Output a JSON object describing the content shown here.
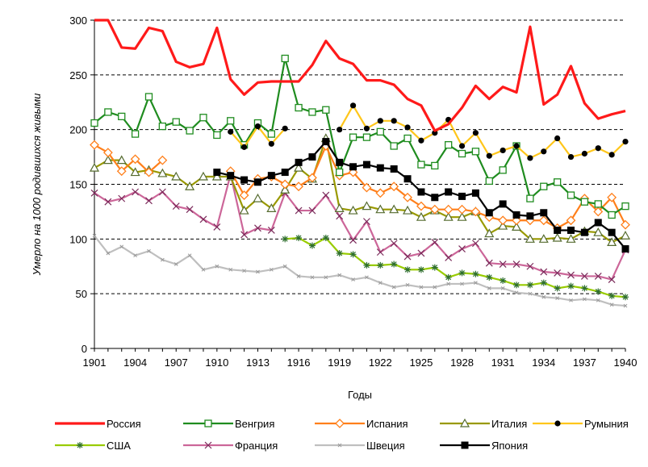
{
  "chart_data": {
    "type": "line",
    "xlabel": "Годы",
    "ylabel": "Умерло на 1000 родившихся живыми",
    "xlim": [
      1901,
      1940
    ],
    "ylim": [
      0,
      300
    ],
    "x_ticks": [
      "1901",
      "1904",
      "1907",
      "1910",
      "1913",
      "1916",
      "1919",
      "1922",
      "1925",
      "1928",
      "1931",
      "1934",
      "1937",
      "1940"
    ],
    "y_ticks": [
      "0",
      "50",
      "100",
      "150",
      "200",
      "250",
      "300"
    ],
    "grid": "horizontal dashed",
    "legend_position": "bottom",
    "series": [
      {
        "name": "Россия",
        "color": "#ff1a1a",
        "marker": "none",
        "x": [
          1901,
          1902,
          1903,
          1904,
          1905,
          1906,
          1907,
          1908,
          1909,
          1910,
          1911,
          1912,
          1913,
          1914,
          1915,
          1916,
          1917,
          1918,
          1919,
          1920,
          1921,
          1922,
          1923,
          1924,
          1925,
          1926,
          1927,
          1928,
          1929,
          1930,
          1931,
          1932,
          1933,
          1934,
          1935,
          1936,
          1937,
          1938,
          1939,
          1940
        ],
        "y": [
          300,
          300,
          275,
          274,
          293,
          290,
          262,
          257,
          260,
          293,
          246,
          232,
          243,
          244,
          244,
          244,
          259,
          281,
          265,
          260,
          245,
          245,
          241,
          228,
          222,
          199,
          205,
          220,
          240,
          228,
          239,
          234,
          294,
          223,
          232,
          258,
          224,
          210,
          214,
          217
        ]
      },
      {
        "name": "Венгрия",
        "color": "#1f8c1f",
        "marker": "square",
        "x": [
          1901,
          1902,
          1903,
          1904,
          1905,
          1906,
          1907,
          1908,
          1909,
          1910,
          1911,
          1912,
          1913,
          1914,
          1915,
          1916,
          1917,
          1918,
          1919,
          1920,
          1921,
          1922,
          1923,
          1924,
          1925,
          1926,
          1927,
          1928,
          1929,
          1930,
          1931,
          1932,
          1933,
          1934,
          1935,
          1936,
          1937,
          1938,
          1939,
          1940
        ],
        "y": [
          206,
          216,
          212,
          196,
          230,
          203,
          207,
          199,
          211,
          195,
          208,
          186,
          206,
          196,
          265,
          220,
          216,
          218,
          161,
          193,
          193,
          198,
          185,
          192,
          168,
          167,
          186,
          178,
          180,
          153,
          163,
          185,
          137,
          148,
          152,
          140,
          134,
          132,
          122,
          130
        ]
      },
      {
        "name": "Испания",
        "color": "#ff7f1a",
        "marker": "diamond",
        "x": [
          1901,
          1902,
          1903,
          1904,
          1905,
          1906,
          null,
          1911,
          1912,
          1913,
          1914,
          1915,
          1916,
          1917,
          1918,
          1919,
          1920,
          1921,
          1922,
          1923,
          1924,
          1925,
          1926,
          1927,
          1928,
          1929,
          1930,
          1931,
          1932,
          1933,
          1934,
          1935,
          1936,
          1937,
          1938,
          1939,
          1940
        ],
        "y": [
          186,
          179,
          162,
          173,
          161,
          172,
          null,
          162,
          140,
          155,
          157,
          150,
          148,
          156,
          185,
          158,
          161,
          147,
          142,
          148,
          138,
          130,
          127,
          127,
          127,
          125,
          120,
          117,
          117,
          117,
          117,
          110,
          117,
          137,
          125,
          138,
          113
        ]
      },
      {
        "name": "Италия",
        "color": "#999900",
        "marker": "triangle",
        "x": [
          1901,
          1902,
          1903,
          1904,
          1905,
          1906,
          1907,
          1908,
          1909,
          1910,
          1911,
          1912,
          1913,
          1914,
          1915,
          1916,
          1917,
          1918,
          1919,
          1920,
          1921,
          1922,
          1923,
          1924,
          1925,
          1926,
          1927,
          1928,
          1929,
          1930,
          1931,
          1932,
          1933,
          1934,
          1935,
          1936,
          1937,
          1938,
          1939,
          1940
        ],
        "y": [
          165,
          172,
          172,
          161,
          163,
          160,
          157,
          148,
          157,
          157,
          157,
          126,
          137,
          128,
          145,
          165,
          155,
          192,
          128,
          126,
          130,
          127,
          127,
          126,
          120,
          126,
          120,
          120,
          125,
          105,
          112,
          111,
          100,
          100,
          101,
          100,
          107,
          106,
          97,
          103
        ]
      },
      {
        "name": "Румыния",
        "color": "#ffc61a",
        "marker": "circle",
        "x": [
          1911,
          1912,
          1913,
          1914,
          1915,
          null,
          1919,
          1920,
          1921,
          1922,
          1923,
          1924,
          1925,
          1926,
          1927,
          1928,
          1929,
          1930,
          1931,
          1932,
          1933,
          1934,
          1935,
          1936,
          1937,
          1938,
          1939,
          1940
        ],
        "y": [
          198,
          184,
          203,
          187,
          201,
          null,
          200,
          222,
          201,
          208,
          208,
          202,
          190,
          197,
          209,
          185,
          197,
          176,
          181,
          185,
          174,
          180,
          192,
          175,
          178,
          183,
          177,
          189
        ]
      },
      {
        "name": "США",
        "color": "#99cc00",
        "marker": "asterisk",
        "x": [
          1915,
          1916,
          1917,
          1918,
          1919,
          1920,
          1921,
          1922,
          1923,
          1924,
          1925,
          1926,
          1927,
          1928,
          1929,
          1930,
          1931,
          1932,
          1933,
          1934,
          1935,
          1936,
          1937,
          1938,
          1939,
          1940
        ],
        "y": [
          100,
          101,
          94,
          101,
          87,
          86,
          76,
          76,
          77,
          72,
          72,
          74,
          65,
          69,
          68,
          65,
          62,
          58,
          58,
          60,
          55,
          57,
          55,
          52,
          48,
          47
        ]
      },
      {
        "name": "Франция",
        "color": "#cc6699",
        "marker": "x",
        "x": [
          1901,
          1902,
          1903,
          1904,
          1905,
          1906,
          1907,
          1908,
          1909,
          1910,
          1911,
          1912,
          1913,
          1914,
          1915,
          1916,
          1917,
          1918,
          1919,
          1920,
          1921,
          1922,
          1923,
          1924,
          1925,
          1926,
          1927,
          1928,
          1929,
          1930,
          1931,
          1932,
          1933,
          1934,
          1935,
          1936,
          1937,
          1938,
          1939,
          1940
        ],
        "y": [
          142,
          134,
          137,
          143,
          135,
          143,
          130,
          127,
          118,
          111,
          159,
          104,
          110,
          108,
          142,
          126,
          126,
          140,
          121,
          99,
          116,
          88,
          96,
          84,
          87,
          97,
          83,
          91,
          96,
          78,
          77,
          77,
          75,
          70,
          69,
          67,
          66,
          66,
          63,
          90
        ]
      },
      {
        "name": "Швеция",
        "color": "#bfbfbf",
        "marker": "small-x",
        "x": [
          1901,
          1902,
          1903,
          1904,
          1905,
          1906,
          1907,
          1908,
          1909,
          1910,
          1911,
          1912,
          1913,
          1914,
          1915,
          1916,
          1917,
          1918,
          1919,
          1920,
          1921,
          1922,
          1923,
          1924,
          1925,
          1926,
          1927,
          1928,
          1929,
          1930,
          1931,
          1932,
          1933,
          1934,
          1935,
          1936,
          1937,
          1938,
          1939,
          1940
        ],
        "y": [
          103,
          87,
          93,
          85,
          89,
          81,
          77,
          85,
          72,
          75,
          72,
          71,
          70,
          72,
          75,
          66,
          65,
          65,
          67,
          63,
          65,
          60,
          56,
          58,
          56,
          56,
          59,
          59,
          60,
          55,
          55,
          51,
          50,
          47,
          46,
          44,
          45,
          44,
          40,
          39
        ]
      },
      {
        "name": "Япония",
        "color": "#000000",
        "marker": "filled-square",
        "x": [
          1910,
          1911,
          1912,
          1913,
          1914,
          1915,
          1916,
          1917,
          1918,
          1919,
          1920,
          1921,
          1922,
          1923,
          1924,
          1925,
          1926,
          1927,
          1928,
          1929,
          1930,
          1931,
          1932,
          1933,
          1934,
          1935,
          1936,
          1937,
          1938,
          1939,
          1940
        ],
        "y": [
          161,
          158,
          154,
          152,
          158,
          161,
          170,
          175,
          189,
          170,
          166,
          168,
          165,
          164,
          155,
          143,
          138,
          143,
          139,
          142,
          124,
          132,
          122,
          121,
          124,
          108,
          108,
          106,
          115,
          106,
          91
        ]
      }
    ]
  }
}
